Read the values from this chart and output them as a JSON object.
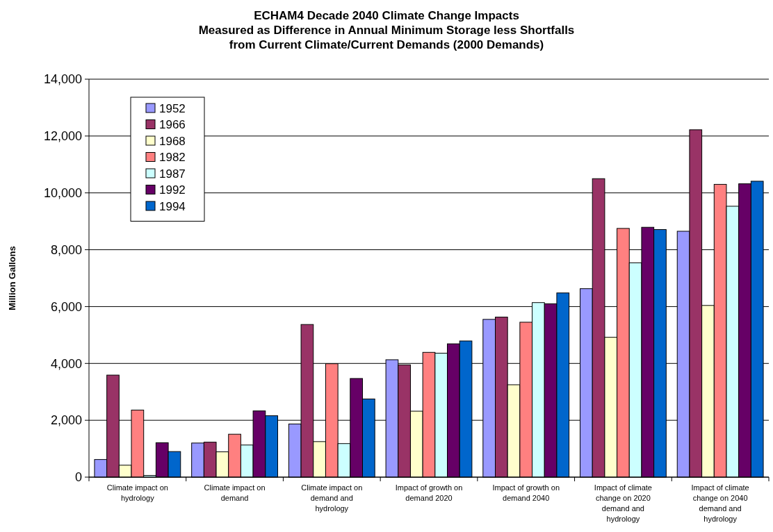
{
  "chart_data": {
    "type": "bar",
    "title": "ECHAM4 Decade 2040 Climate Change Impacts\nMeasured as Difference in Annual Minimum Storage less Shortfalls\nfrom Current Climate/Current Demands (2000 Demands)",
    "ylabel": "Million Gallons",
    "categories": [
      "Climate impact on hydrology",
      "Climate impact on demand",
      "Climate impact on demand and hydrology",
      "Impact of growth on demand 2020",
      "Impact of growth on demand 2040",
      "Impact of climate change on  2020 demand and hydrology",
      "Impact of climate change on  2040 demand and hydrology"
    ],
    "series": [
      {
        "name": "1952",
        "color": "#9999ff",
        "values": [
          620,
          1200,
          1870,
          4130,
          5550,
          6630,
          8650
        ]
      },
      {
        "name": "1966",
        "color": "#993366",
        "values": [
          3590,
          1230,
          5370,
          3950,
          5630,
          10500,
          12220
        ]
      },
      {
        "name": "1968",
        "color": "#ffffcc",
        "values": [
          420,
          890,
          1250,
          2320,
          3250,
          4920,
          6040
        ]
      },
      {
        "name": "1982",
        "color": "#ff8080",
        "values": [
          2360,
          1510,
          3990,
          4390,
          5450,
          8750,
          10300
        ]
      },
      {
        "name": "1987",
        "color": "#ccffff",
        "values": [
          60,
          1130,
          1180,
          4360,
          6140,
          7540,
          9530
        ]
      },
      {
        "name": "1992",
        "color": "#660066",
        "values": [
          1210,
          2330,
          3470,
          4690,
          6100,
          8790,
          10320
        ]
      },
      {
        "name": "1994",
        "color": "#0066cc",
        "values": [
          900,
          2160,
          2750,
          4790,
          6480,
          8710,
          10410
        ]
      }
    ],
    "ylim": [
      0,
      14000
    ],
    "yticks": [
      0,
      {
        "value": 2000,
        "label": "2,000"
      },
      {
        "value": 4000,
        "label": "4,000"
      },
      {
        "value": 6000,
        "label": "6,000"
      },
      {
        "value": 8000,
        "label": "8,000"
      },
      {
        "value": 10000,
        "label": "10,000"
      },
      {
        "value": 12000,
        "label": "12,000"
      },
      {
        "value": 14000,
        "label": "14,000"
      }
    ],
    "grid": "y",
    "legend": "top left"
  }
}
